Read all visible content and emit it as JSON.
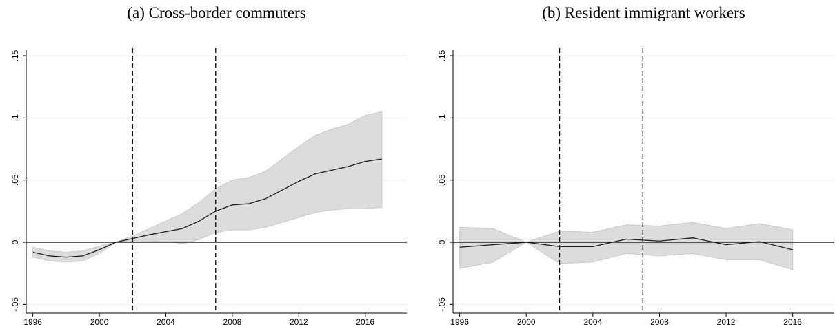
{
  "chart_data": [
    {
      "type": "line-band",
      "title": "(a) Cross-border commuters",
      "x": [
        1996,
        1997,
        1998,
        1999,
        2000,
        2001,
        2002,
        2003,
        2004,
        2005,
        2006,
        2007,
        2008,
        2009,
        2010,
        2011,
        2012,
        2013,
        2014,
        2015,
        2016,
        2017
      ],
      "values": [
        -0.008,
        -0.011,
        -0.012,
        -0.011,
        -0.006,
        0,
        0.003,
        0.006,
        0.0085,
        0.011,
        0.017,
        0.025,
        0.03,
        0.031,
        0.035,
        0.042,
        0.049,
        0.055,
        0.058,
        0.061,
        0.065,
        0.067
      ],
      "upper": [
        -0.004,
        -0.007,
        -0.008,
        -0.007,
        -0.003,
        0,
        0.005,
        0.011,
        0.017,
        0.023,
        0.032,
        0.043,
        0.05,
        0.052,
        0.057,
        0.067,
        0.077,
        0.086,
        0.091,
        0.095,
        0.102,
        0.105
      ],
      "lower": [
        -0.012,
        -0.015,
        -0.016,
        -0.015,
        -0.009,
        0,
        0.001,
        0.001,
        0.0005,
        -0.001,
        0.002,
        0.008,
        0.01,
        0.01,
        0.012,
        0.016,
        0.02,
        0.024,
        0.026,
        0.027,
        0.027,
        0.028
      ],
      "color": "#1a1a1a",
      "band_color": "#dcdcdc",
      "xlim": [
        1995.6,
        2018.5
      ],
      "ylim": [
        -0.057,
        0.155
      ],
      "xticks": [
        1996,
        2000,
        2004,
        2008,
        2012,
        2016
      ],
      "yticks": [
        {
          "value": -0.05,
          "label": "-.05"
        },
        0,
        {
          "value": 0.05,
          "label": ".05"
        },
        {
          "value": 0.1,
          "label": ".1"
        },
        {
          "value": 0.15,
          "label": ".15"
        }
      ],
      "vlines": [
        2002,
        2007
      ],
      "hline": 0,
      "grid": true
    },
    {
      "type": "line-band",
      "title": "(b) Resident immigrant workers",
      "x": [
        1996,
        1998,
        2000,
        2002,
        2004,
        2006,
        2008,
        2010,
        2012,
        2014,
        2016
      ],
      "values": [
        -0.004,
        -0.002,
        0,
        -0.0035,
        -0.0035,
        0.0025,
        0.001,
        0.0035,
        -0.002,
        0.0005,
        -0.006
      ],
      "upper": [
        0.012,
        0.011,
        0,
        0.009,
        0.008,
        0.014,
        0.013,
        0.016,
        0.011,
        0.015,
        0.01
      ],
      "lower": [
        -0.021,
        -0.016,
        0,
        -0.017,
        -0.016,
        -0.009,
        -0.011,
        -0.009,
        -0.014,
        -0.014,
        -0.022
      ],
      "color": "#1a1a1a",
      "band_color": "#dcdcdc",
      "xlim": [
        1995.6,
        2018.5
      ],
      "ylim": [
        -0.057,
        0.155
      ],
      "xticks": [
        1996,
        2000,
        2004,
        2008,
        2012,
        2016
      ],
      "yticks": [
        {
          "value": -0.05,
          "label": "-.05"
        },
        0,
        {
          "value": 0.05,
          "label": ".05"
        },
        {
          "value": 0.1,
          "label": ".1"
        },
        {
          "value": 0.15,
          "label": ".15"
        }
      ],
      "vlines": [
        2002,
        2007
      ],
      "hline": 0,
      "grid": true
    }
  ]
}
